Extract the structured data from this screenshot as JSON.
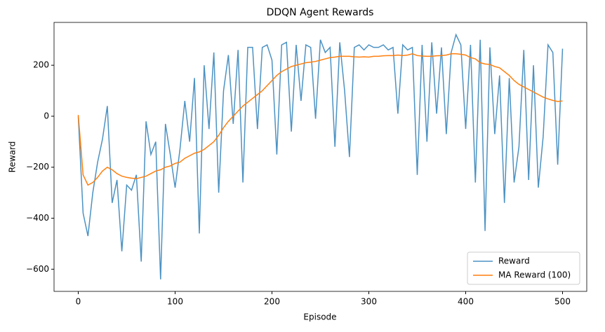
{
  "chart_data": {
    "type": "line",
    "title": "DDQN Agent Rewards",
    "xlabel": "Episode",
    "ylabel": "Reward",
    "x": [
      0,
      5,
      10,
      15,
      20,
      25,
      30,
      35,
      40,
      45,
      50,
      55,
      60,
      65,
      70,
      75,
      80,
      85,
      90,
      95,
      100,
      105,
      110,
      115,
      120,
      125,
      130,
      135,
      140,
      145,
      150,
      155,
      160,
      165,
      170,
      175,
      180,
      185,
      190,
      195,
      200,
      205,
      210,
      215,
      220,
      225,
      230,
      235,
      240,
      245,
      250,
      255,
      260,
      265,
      270,
      275,
      280,
      285,
      290,
      295,
      300,
      305,
      310,
      315,
      320,
      325,
      330,
      335,
      340,
      345,
      350,
      355,
      360,
      365,
      370,
      375,
      380,
      385,
      390,
      395,
      400,
      405,
      410,
      415,
      420,
      425,
      430,
      435,
      440,
      445,
      450,
      455,
      460,
      465,
      470,
      475,
      480,
      485,
      490,
      495,
      500
    ],
    "series": [
      {
        "name": "Reward",
        "color": "#1f77b4",
        "opacity": 0.8,
        "values": [
          0,
          -380,
          -470,
          -300,
          -180,
          -90,
          40,
          -340,
          -250,
          -530,
          -270,
          -290,
          -230,
          -570,
          -20,
          -150,
          -100,
          -640,
          -30,
          -150,
          -280,
          -130,
          60,
          -100,
          150,
          -460,
          200,
          -50,
          250,
          -300,
          100,
          240,
          -30,
          260,
          -260,
          270,
          270,
          -50,
          270,
          280,
          220,
          -150,
          280,
          290,
          -60,
          280,
          60,
          280,
          270,
          -10,
          300,
          250,
          270,
          -120,
          290,
          100,
          -160,
          270,
          280,
          260,
          280,
          270,
          270,
          280,
          260,
          270,
          10,
          280,
          260,
          270,
          -230,
          280,
          -100,
          290,
          10,
          270,
          -70,
          250,
          320,
          280,
          -50,
          280,
          -260,
          300,
          -450,
          270,
          -70,
          160,
          -340,
          150,
          -260,
          -120,
          260,
          -250,
          200,
          -280,
          -80,
          280,
          250,
          -190,
          265
        ]
      },
      {
        "name": "MA Reward (100)",
        "color": "#ff7f0e",
        "opacity": 1,
        "values": [
          5,
          -230,
          -270,
          -260,
          -240,
          -215,
          -200,
          -210,
          -225,
          -235,
          -240,
          -243,
          -245,
          -240,
          -235,
          -225,
          -215,
          -210,
          -200,
          -195,
          -185,
          -180,
          -165,
          -155,
          -145,
          -140,
          -130,
          -115,
          -100,
          -75,
          -45,
          -20,
          0,
          20,
          40,
          55,
          70,
          85,
          100,
          120,
          140,
          160,
          175,
          185,
          195,
          200,
          205,
          210,
          212,
          215,
          220,
          225,
          230,
          232,
          235,
          235,
          235,
          233,
          232,
          233,
          232,
          235,
          235,
          237,
          238,
          238,
          240,
          238,
          240,
          245,
          238,
          236,
          235,
          235,
          237,
          238,
          240,
          245,
          245,
          243,
          240,
          230,
          225,
          210,
          205,
          203,
          195,
          190,
          175,
          160,
          140,
          125,
          115,
          105,
          95,
          85,
          75,
          68,
          62,
          58,
          60
        ]
      }
    ],
    "xlim": [
      -25,
      525
    ],
    "ylim": [
      -687,
      368
    ],
    "xticks": [
      0,
      100,
      200,
      300,
      400,
      500
    ],
    "yticks": [
      {
        "value": -600,
        "label": "−600"
      },
      {
        "value": -400,
        "label": "−400"
      },
      {
        "value": -200,
        "label": "−200"
      },
      0,
      200
    ],
    "grid": false,
    "legend": "lower right"
  }
}
